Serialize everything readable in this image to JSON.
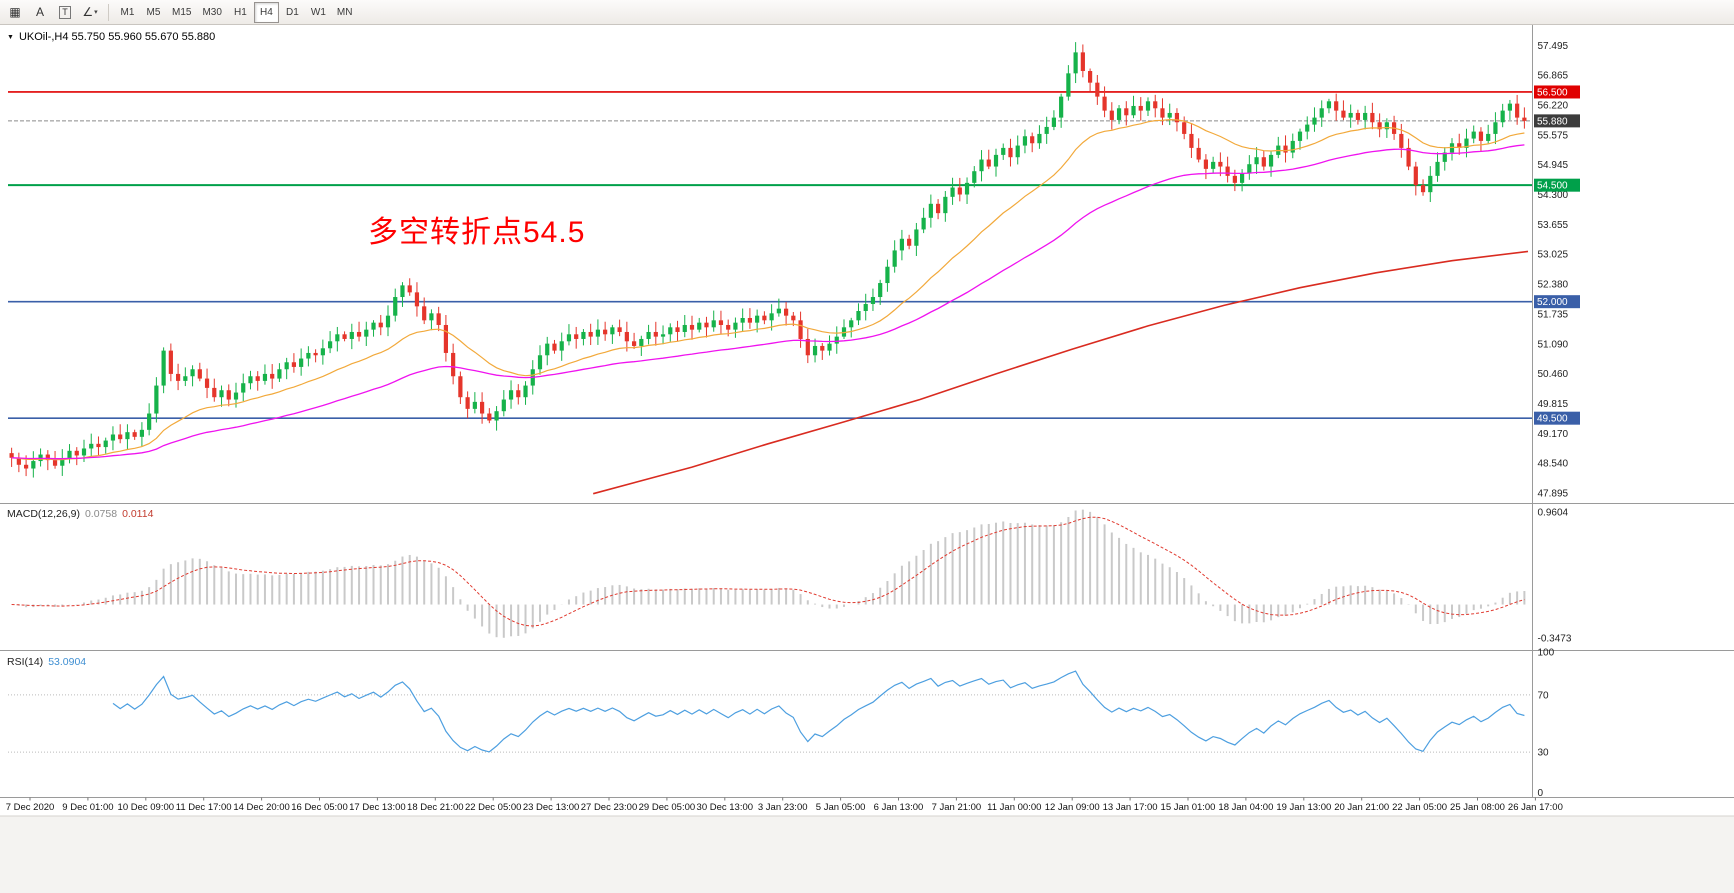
{
  "toolbar": {
    "tools": [
      {
        "name": "grid",
        "glyph": "▦"
      },
      {
        "name": "text-label",
        "glyph": "A"
      },
      {
        "name": "text",
        "glyph": "T"
      },
      {
        "name": "shapes",
        "glyph": "∠",
        "caret": "▾"
      }
    ],
    "timeframes": [
      "M1",
      "M5",
      "M15",
      "M30",
      "H1",
      "H4",
      "D1",
      "W1",
      "MN"
    ],
    "active_timeframe": "H4"
  },
  "chart": {
    "symbol_header": "UKOil-,H4 55.750 55.960 55.670 55.880",
    "dropdown_glyph": "▼",
    "annotation": {
      "text": "多空转折点54.5",
      "color": "#ff0000"
    }
  },
  "colors": {
    "bull": "#16b24a",
    "bear": "#e5352b",
    "ma_fast": "#f2a93b",
    "ma_medium": "#ef13ef",
    "ma_slow": "#d92b20",
    "macd_hist": "#c9c9c9",
    "macd_signal": "#e03a2f",
    "rsi_line": "#4d9fe0",
    "current_badge": "#3c3c3c"
  },
  "chart_data": {
    "type": "candlestick",
    "symbol": "UKOil-",
    "timeframe": "H4",
    "ohlc_current": {
      "open": 55.75,
      "high": 55.96,
      "low": 55.67,
      "close": 55.88
    },
    "first_open": 48.75,
    "closes": [
      48.65,
      48.5,
      48.42,
      48.58,
      48.72,
      48.6,
      48.48,
      48.62,
      48.8,
      48.7,
      48.85,
      48.95,
      48.88,
      49.02,
      49.15,
      49.05,
      49.2,
      49.1,
      49.25,
      49.6,
      50.2,
      50.95,
      50.45,
      50.3,
      50.4,
      50.55,
      50.35,
      50.15,
      49.95,
      50.1,
      49.9,
      50.05,
      50.25,
      50.4,
      50.3,
      50.45,
      50.35,
      50.55,
      50.7,
      50.6,
      50.78,
      50.9,
      50.85,
      51.0,
      51.15,
      51.3,
      51.2,
      51.35,
      51.25,
      51.4,
      51.55,
      51.45,
      51.7,
      52.1,
      52.35,
      52.2,
      51.9,
      51.6,
      51.75,
      51.5,
      50.9,
      50.4,
      49.95,
      49.7,
      49.85,
      49.6,
      49.45,
      49.65,
      49.9,
      50.1,
      49.95,
      50.2,
      50.55,
      50.85,
      51.1,
      50.95,
      51.15,
      51.3,
      51.2,
      51.35,
      51.25,
      51.4,
      51.3,
      51.45,
      51.35,
      51.15,
      51.05,
      51.2,
      51.35,
      51.25,
      51.3,
      51.45,
      51.35,
      51.5,
      51.4,
      51.55,
      51.45,
      51.6,
      51.5,
      51.4,
      51.55,
      51.65,
      51.55,
      51.7,
      51.6,
      51.75,
      51.85,
      51.7,
      51.6,
      51.2,
      50.85,
      51.05,
      50.95,
      51.1,
      51.25,
      51.45,
      51.6,
      51.8,
      51.95,
      52.1,
      52.4,
      52.75,
      53.1,
      53.35,
      53.2,
      53.55,
      53.8,
      54.1,
      53.9,
      54.25,
      54.45,
      54.3,
      54.55,
      54.8,
      55.05,
      54.9,
      55.15,
      55.3,
      55.1,
      55.35,
      55.55,
      55.4,
      55.6,
      55.75,
      55.95,
      56.4,
      56.9,
      57.35,
      56.95,
      56.7,
      56.4,
      56.1,
      55.9,
      56.15,
      56.0,
      56.2,
      56.1,
      56.3,
      56.15,
      55.95,
      56.05,
      55.85,
      55.6,
      55.3,
      55.05,
      54.85,
      55.0,
      54.9,
      54.7,
      54.55,
      54.75,
      54.95,
      55.1,
      54.9,
      55.15,
      55.35,
      55.2,
      55.45,
      55.65,
      55.8,
      55.95,
      56.15,
      56.3,
      56.1,
      55.95,
      56.05,
      55.9,
      56.05,
      55.85,
      55.7,
      55.85,
      55.6,
      55.3,
      54.9,
      54.5,
      54.35,
      54.7,
      55.0,
      55.2,
      55.4,
      55.3,
      55.5,
      55.65,
      55.45,
      55.6,
      55.85,
      56.1,
      56.25,
      55.95,
      55.88
    ],
    "price_range": {
      "min": 47.68,
      "max": 57.83
    },
    "y_axis_ticks": [
      57.495,
      56.865,
      56.22,
      55.575,
      54.945,
      54.3,
      53.655,
      53.025,
      52.38,
      51.735,
      51.09,
      50.46,
      49.815,
      49.17,
      48.54,
      47.895
    ],
    "price_levels": [
      {
        "value": 56.5,
        "label": "56.500",
        "color": "#e00000",
        "width": 1.6
      },
      {
        "value": 54.5,
        "label": "54.500",
        "color": "#00a04a",
        "width": 2.0
      },
      {
        "value": 52.0,
        "label": "52.000",
        "color": "#3a5fa8",
        "width": 1.6
      },
      {
        "value": 49.5,
        "label": "49.500",
        "color": "#3a5fa8",
        "width": 1.6
      }
    ],
    "current_price": {
      "value": 55.88,
      "label": "55.880"
    },
    "ma_slow_anchors": [
      [
        0.385,
        47.88
      ],
      [
        0.45,
        48.45
      ],
      [
        0.5,
        48.95
      ],
      [
        0.55,
        49.42
      ],
      [
        0.6,
        49.9
      ],
      [
        0.65,
        50.45
      ],
      [
        0.7,
        50.98
      ],
      [
        0.75,
        51.48
      ],
      [
        0.8,
        51.92
      ],
      [
        0.85,
        52.3
      ],
      [
        0.9,
        52.62
      ],
      [
        0.95,
        52.88
      ],
      [
        1.0,
        53.08
      ]
    ],
    "indicators": {
      "macd": {
        "name": "MACD(12,26,9)",
        "value_main": "0.0758",
        "value_signal": "0.0114",
        "params": [
          12,
          26,
          9
        ],
        "axis": [
          0.9604,
          -0.3473
        ],
        "range": {
          "min": -0.45,
          "max": 1.02
        }
      },
      "rsi": {
        "name": "RSI(14)",
        "value": "53.0904",
        "period": 14,
        "axis": [
          100,
          70,
          30,
          0
        ],
        "levels": [
          70,
          30
        ],
        "range": {
          "min": 0,
          "max": 100
        }
      }
    },
    "x_axis_labels": [
      "7 Dec 2020",
      "9 Dec 01:00",
      "10 Dec 09:00",
      "11 Dec 17:00",
      "14 Dec 20:00",
      "16 Dec 05:00",
      "17 Dec 13:00",
      "18 Dec 21:00",
      "22 Dec 05:00",
      "23 Dec 13:00",
      "27 Dec 23:00",
      "29 Dec 05:00",
      "30 Dec 13:00",
      "3 Jan 23:00",
      "5 Jan 05:00",
      "6 Jan 13:00",
      "7 Jan 21:00",
      "11 Jan 00:00",
      "12 Jan 09:00",
      "13 Jan 17:00",
      "15 Jan 01:00",
      "18 Jan 04:00",
      "19 Jan 13:00",
      "20 Jan 21:00",
      "22 Jan 05:00",
      "25 Jan 08:00",
      "26 Jan 17:00"
    ]
  }
}
